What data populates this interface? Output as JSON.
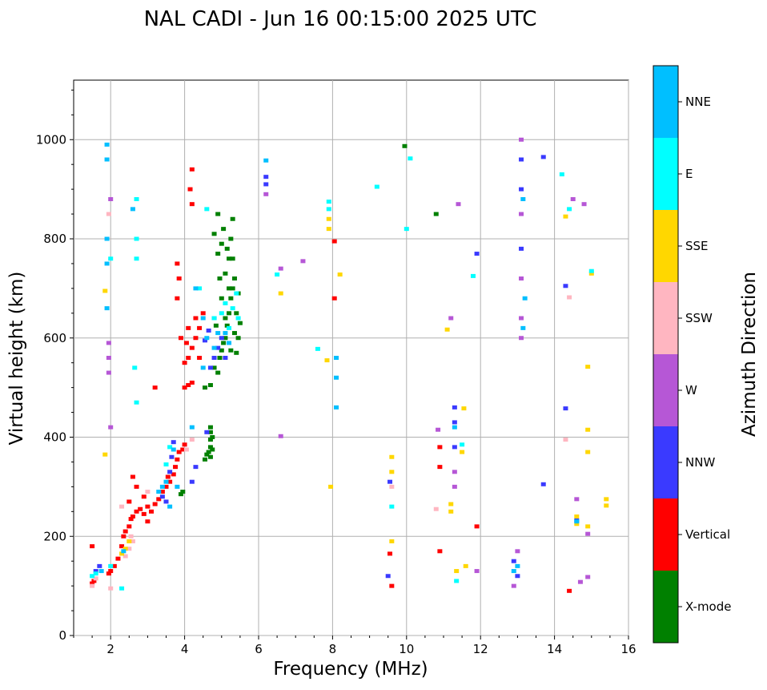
{
  "chart_data": {
    "type": "scatter",
    "title": "NAL CADI - Jun 16 00:15:00 2025 UTC",
    "xlabel": "Frequency (MHz)",
    "ylabel": "Virtual height (km)",
    "xlim": [
      1.0,
      16.0
    ],
    "ylim": [
      0,
      1120
    ],
    "xticks": [
      2,
      4,
      6,
      8,
      10,
      12,
      14,
      16
    ],
    "yticks": [
      0,
      200,
      400,
      600,
      800,
      1000
    ],
    "grid": true,
    "colorbar": {
      "label": "Azimuth Direction",
      "position": "right",
      "categories": [
        {
          "name": "X-mode",
          "color": "#008000"
        },
        {
          "name": "Vertical",
          "color": "#ff0000"
        },
        {
          "name": "NNW",
          "color": "#3a3aff"
        },
        {
          "name": "W",
          "color": "#b657d6"
        },
        {
          "name": "SSW",
          "color": "#ffb6c1"
        },
        {
          "name": "SSE",
          "color": "#ffd700"
        },
        {
          "name": "E",
          "color": "#00ffff"
        },
        {
          "name": "NNE",
          "color": "#00bfff"
        }
      ]
    },
    "series": [
      {
        "name": "X-mode",
        "points": [
          [
            4.55,
            355
          ],
          [
            4.6,
            365
          ],
          [
            4.65,
            370
          ],
          [
            4.7,
            360
          ],
          [
            4.7,
            380
          ],
          [
            4.7,
            395
          ],
          [
            4.7,
            410
          ],
          [
            4.7,
            420
          ],
          [
            4.75,
            375
          ],
          [
            4.75,
            400
          ],
          [
            4.55,
            500
          ],
          [
            4.7,
            505
          ],
          [
            4.8,
            540
          ],
          [
            4.9,
            530
          ],
          [
            4.95,
            560
          ],
          [
            5.0,
            575
          ],
          [
            5.05,
            590
          ],
          [
            5.1,
            600
          ],
          [
            5.15,
            625
          ],
          [
            5.2,
            650
          ],
          [
            5.25,
            680
          ],
          [
            5.3,
            700
          ],
          [
            5.35,
            720
          ],
          [
            5.0,
            680
          ],
          [
            5.1,
            730
          ],
          [
            5.2,
            760
          ],
          [
            5.25,
            800
          ],
          [
            5.3,
            840
          ],
          [
            5.0,
            790
          ],
          [
            4.9,
            770
          ],
          [
            4.8,
            810
          ],
          [
            4.9,
            850
          ],
          [
            5.05,
            820
          ],
          [
            5.15,
            780
          ],
          [
            5.35,
            610
          ],
          [
            5.4,
            650
          ],
          [
            5.45,
            600
          ],
          [
            4.95,
            720
          ],
          [
            5.3,
            760
          ],
          [
            5.2,
            700
          ],
          [
            3.9,
            285
          ],
          [
            3.95,
            290
          ],
          [
            10.8,
            850
          ],
          [
            9.95,
            987
          ],
          [
            5.45,
            690
          ],
          [
            5.5,
            630
          ],
          [
            5.1,
            640
          ],
          [
            4.85,
            625
          ],
          [
            5.25,
            575
          ],
          [
            5.4,
            570
          ]
        ]
      },
      {
        "name": "Vertical",
        "points": [
          [
            1.5,
            105
          ],
          [
            1.55,
            110
          ],
          [
            1.5,
            180
          ],
          [
            1.95,
            125
          ],
          [
            2.0,
            130
          ],
          [
            2.1,
            140
          ],
          [
            2.2,
            155
          ],
          [
            2.3,
            180
          ],
          [
            2.35,
            200
          ],
          [
            2.4,
            210
          ],
          [
            2.5,
            220
          ],
          [
            2.55,
            235
          ],
          [
            2.6,
            240
          ],
          [
            2.7,
            250
          ],
          [
            2.8,
            255
          ],
          [
            2.9,
            245
          ],
          [
            3.0,
            260
          ],
          [
            3.1,
            250
          ],
          [
            3.2,
            265
          ],
          [
            3.3,
            275
          ],
          [
            3.4,
            290
          ],
          [
            3.5,
            300
          ],
          [
            3.55,
            320
          ],
          [
            3.6,
            310
          ],
          [
            3.7,
            325
          ],
          [
            3.75,
            340
          ],
          [
            3.8,
            355
          ],
          [
            3.85,
            370
          ],
          [
            3.95,
            375
          ],
          [
            4.0,
            385
          ],
          [
            3.8,
            680
          ],
          [
            3.85,
            720
          ],
          [
            3.8,
            750
          ],
          [
            4.0,
            500
          ],
          [
            4.1,
            505
          ],
          [
            4.2,
            510
          ],
          [
            4.1,
            560
          ],
          [
            4.2,
            580
          ],
          [
            4.3,
            600
          ],
          [
            4.4,
            620
          ],
          [
            4.5,
            650
          ],
          [
            4.2,
            940
          ],
          [
            4.15,
            900
          ],
          [
            4.2,
            870
          ],
          [
            2.6,
            320
          ],
          [
            2.7,
            300
          ],
          [
            3.2,
            500
          ],
          [
            8.05,
            680
          ],
          [
            8.05,
            795
          ],
          [
            10.9,
            170
          ],
          [
            10.9,
            340
          ],
          [
            10.9,
            380
          ],
          [
            11.9,
            220
          ],
          [
            9.6,
            100
          ],
          [
            9.55,
            165
          ],
          [
            14.4,
            90
          ],
          [
            2.9,
            280
          ],
          [
            3.0,
            230
          ],
          [
            2.5,
            270
          ],
          [
            4.05,
            590
          ],
          [
            4.1,
            620
          ],
          [
            3.9,
            600
          ],
          [
            4.3,
            640
          ],
          [
            4.4,
            560
          ],
          [
            4.0,
            550
          ]
        ]
      },
      {
        "name": "NNW",
        "points": [
          [
            1.6,
            130
          ],
          [
            1.7,
            140
          ],
          [
            3.4,
            280
          ],
          [
            3.5,
            270
          ],
          [
            3.6,
            330
          ],
          [
            3.65,
            360
          ],
          [
            3.7,
            390
          ],
          [
            4.2,
            310
          ],
          [
            4.3,
            340
          ],
          [
            4.6,
            410
          ],
          [
            4.7,
            540
          ],
          [
            4.8,
            560
          ],
          [
            4.9,
            580
          ],
          [
            5.0,
            600
          ],
          [
            5.1,
            560
          ],
          [
            6.2,
            910
          ],
          [
            6.2,
            925
          ],
          [
            11.3,
            380
          ],
          [
            11.3,
            430
          ],
          [
            11.3,
            460
          ],
          [
            12.9,
            150
          ],
          [
            13.0,
            120
          ],
          [
            13.1,
            960
          ],
          [
            13.1,
            900
          ],
          [
            13.1,
            780
          ],
          [
            13.7,
            965
          ],
          [
            13.7,
            305
          ],
          [
            14.3,
            705
          ],
          [
            14.3,
            458
          ],
          [
            14.6,
            232
          ],
          [
            11.9,
            770
          ],
          [
            9.5,
            120
          ],
          [
            9.55,
            310
          ],
          [
            4.55,
            595
          ],
          [
            4.65,
            615
          ],
          [
            4.8,
            640
          ]
        ]
      },
      {
        "name": "W",
        "points": [
          [
            1.95,
            530
          ],
          [
            1.95,
            560
          ],
          [
            1.95,
            590
          ],
          [
            2.0,
            420
          ],
          [
            2.0,
            880
          ],
          [
            6.2,
            890
          ],
          [
            6.6,
            740
          ],
          [
            6.6,
            402
          ],
          [
            7.2,
            755
          ],
          [
            11.2,
            640
          ],
          [
            11.3,
            300
          ],
          [
            11.3,
            330
          ],
          [
            11.4,
            870
          ],
          [
            11.9,
            130
          ],
          [
            12.9,
            100
          ],
          [
            13.0,
            170
          ],
          [
            13.1,
            600
          ],
          [
            13.1,
            640
          ],
          [
            13.1,
            720
          ],
          [
            13.1,
            850
          ],
          [
            13.1,
            1000
          ],
          [
            14.5,
            880
          ],
          [
            14.8,
            870
          ],
          [
            14.6,
            275
          ],
          [
            14.9,
            205
          ],
          [
            14.9,
            118
          ],
          [
            14.7,
            108
          ],
          [
            10.85,
            415
          ]
        ]
      },
      {
        "name": "SSW",
        "points": [
          [
            1.5,
            100
          ],
          [
            1.6,
            115
          ],
          [
            1.95,
            850
          ],
          [
            2.0,
            95
          ],
          [
            2.4,
            160
          ],
          [
            2.5,
            175
          ],
          [
            2.6,
            190
          ],
          [
            2.55,
            200
          ],
          [
            9.6,
            300
          ],
          [
            10.8,
            255
          ],
          [
            14.4,
            682
          ],
          [
            14.3,
            395
          ],
          [
            4.05,
            375
          ],
          [
            4.2,
            395
          ],
          [
            2.3,
            260
          ],
          [
            3.0,
            290
          ]
        ]
      },
      {
        "name": "SSE",
        "points": [
          [
            1.85,
            695
          ],
          [
            1.85,
            365
          ],
          [
            2.3,
            165
          ],
          [
            2.4,
            175
          ],
          [
            2.5,
            190
          ],
          [
            6.6,
            690
          ],
          [
            7.9,
            820
          ],
          [
            7.9,
            840
          ],
          [
            7.85,
            555
          ],
          [
            7.95,
            300
          ],
          [
            8.2,
            728
          ],
          [
            9.6,
            190
          ],
          [
            9.6,
            330
          ],
          [
            9.6,
            360
          ],
          [
            11.2,
            250
          ],
          [
            11.2,
            265
          ],
          [
            11.35,
            130
          ],
          [
            11.5,
            370
          ],
          [
            11.6,
            140
          ],
          [
            14.3,
            845
          ],
          [
            14.9,
            542
          ],
          [
            14.9,
            415
          ],
          [
            14.9,
            370
          ],
          [
            15.4,
            275
          ],
          [
            15.4,
            262
          ],
          [
            14.6,
            225
          ],
          [
            14.9,
            220
          ],
          [
            14.6,
            240
          ],
          [
            11.1,
            617
          ],
          [
            11.55,
            458
          ],
          [
            15.0,
            730
          ]
        ]
      },
      {
        "name": "E",
        "points": [
          [
            1.5,
            120
          ],
          [
            1.6,
            125
          ],
          [
            2.0,
            140
          ],
          [
            2.3,
            95
          ],
          [
            2.65,
            540
          ],
          [
            2.7,
            470
          ],
          [
            2.7,
            800
          ],
          [
            2.7,
            880
          ],
          [
            3.5,
            345
          ],
          [
            3.6,
            380
          ],
          [
            4.4,
            700
          ],
          [
            4.6,
            860
          ],
          [
            4.8,
            640
          ],
          [
            5.0,
            650
          ],
          [
            5.1,
            670
          ],
          [
            5.2,
            620
          ],
          [
            5.3,
            660
          ],
          [
            5.4,
            690
          ],
          [
            6.5,
            728
          ],
          [
            7.6,
            578
          ],
          [
            7.9,
            875
          ],
          [
            7.9,
            860
          ],
          [
            9.2,
            905
          ],
          [
            9.6,
            260
          ],
          [
            10.0,
            820
          ],
          [
            10.1,
            962
          ],
          [
            11.35,
            110
          ],
          [
            11.5,
            385
          ],
          [
            11.8,
            725
          ],
          [
            14.2,
            930
          ],
          [
            14.4,
            860
          ],
          [
            15.0,
            735
          ],
          [
            2.7,
            760
          ],
          [
            2.0,
            760
          ],
          [
            5.45,
            640
          ]
        ]
      },
      {
        "name": "NNE",
        "points": [
          [
            1.9,
            660
          ],
          [
            1.9,
            750
          ],
          [
            1.9,
            800
          ],
          [
            1.9,
            960
          ],
          [
            1.9,
            990
          ],
          [
            2.6,
            860
          ],
          [
            3.3,
            290
          ],
          [
            3.4,
            300
          ],
          [
            3.5,
            310
          ],
          [
            3.7,
            375
          ],
          [
            4.2,
            420
          ],
          [
            4.5,
            540
          ],
          [
            4.6,
            600
          ],
          [
            4.8,
            580
          ],
          [
            4.9,
            610
          ],
          [
            5.1,
            610
          ],
          [
            5.2,
            590
          ],
          [
            6.2,
            958
          ],
          [
            8.1,
            460
          ],
          [
            8.1,
            520
          ],
          [
            8.1,
            560
          ],
          [
            11.3,
            420
          ],
          [
            12.9,
            130
          ],
          [
            13.0,
            140
          ],
          [
            13.15,
            620
          ],
          [
            13.2,
            680
          ],
          [
            13.15,
            880
          ],
          [
            14.6,
            230
          ],
          [
            3.6,
            260
          ],
          [
            3.8,
            300
          ],
          [
            2.35,
            170
          ],
          [
            1.75,
            130
          ],
          [
            4.3,
            700
          ],
          [
            4.5,
            640
          ]
        ]
      }
    ]
  }
}
